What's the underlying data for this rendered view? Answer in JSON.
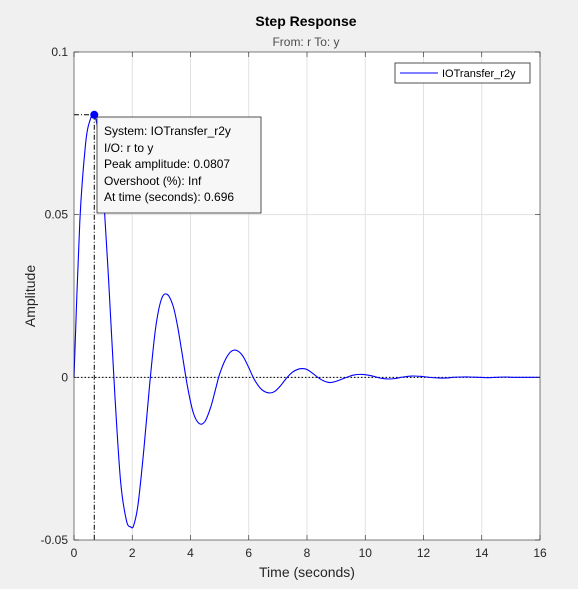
{
  "chart_data": {
    "type": "line",
    "title": "Step Response",
    "subtitle": "From: r  To: y",
    "xlabel": "Time (seconds)",
    "ylabel": "Amplitude",
    "xlim": [
      0,
      16
    ],
    "ylim": [
      -0.05,
      0.1
    ],
    "grid": true,
    "x_ticks": [
      0,
      2,
      4,
      6,
      8,
      10,
      12,
      14,
      16
    ],
    "y_ticks": [
      -0.05,
      0,
      0.05,
      0.1
    ],
    "x_tick_labels": [
      "0",
      "2",
      "4",
      "6",
      "8",
      "10",
      "12",
      "14",
      "16"
    ],
    "y_tick_labels": [
      "-0.05",
      "0",
      "0.05",
      "0.1"
    ],
    "legend": {
      "position": "top-right",
      "entries": [
        "IOTransfer_r2y"
      ]
    },
    "series": [
      {
        "name": "IOTransfer_r2y",
        "color": "#0000ff",
        "x": [
          0,
          0.2,
          0.4,
          0.55,
          0.696,
          0.85,
          1.0,
          1.2,
          1.4,
          1.6,
          1.8,
          1.95,
          2.05,
          2.2,
          2.4,
          2.6,
          2.8,
          3.0,
          3.2,
          3.4,
          3.55,
          3.7,
          3.9,
          4.1,
          4.3,
          4.5,
          4.7,
          4.85,
          5.0,
          5.2,
          5.4,
          5.6,
          5.8,
          6.0,
          6.2,
          6.45,
          6.7,
          6.9,
          7.1,
          7.3,
          7.5,
          7.7,
          7.85,
          8.0,
          8.2,
          8.4,
          8.6,
          8.8,
          9.0,
          9.3,
          9.6,
          9.9,
          10.2,
          10.5,
          10.75,
          11.0,
          11.3,
          11.6,
          11.9,
          12.2,
          12.5,
          12.8,
          13.0,
          13.3,
          13.6,
          13.9,
          14.2,
          14.5,
          14.8,
          15.1,
          15.4,
          15.7,
          16.0
        ],
        "y": [
          0,
          0.048,
          0.072,
          0.079,
          0.0807,
          0.074,
          0.058,
          0.028,
          -0.005,
          -0.032,
          -0.044,
          -0.046,
          -0.0455,
          -0.039,
          -0.022,
          -0.002,
          0.015,
          0.024,
          0.0255,
          0.022,
          0.016,
          0.008,
          -0.003,
          -0.011,
          -0.0142,
          -0.0135,
          -0.009,
          -0.004,
          0.001,
          0.0055,
          0.008,
          0.0082,
          0.0065,
          0.003,
          -0.0008,
          -0.0038,
          -0.0048,
          -0.0043,
          -0.0025,
          -0.0002,
          0.0016,
          0.0025,
          0.0027,
          0.0024,
          0.0012,
          -0.0002,
          -0.0012,
          -0.0016,
          -0.0012,
          -0.0002,
          0.0007,
          0.0009,
          0.0005,
          -0.0002,
          -0.0005,
          -0.0004,
          0.0001,
          0.0004,
          0.0003,
          0.0,
          -0.0002,
          -0.0002,
          0.0,
          0.0001,
          0.0001,
          0.0,
          -0.0001,
          0.0,
          0.0001,
          0.0,
          0.0,
          0.0,
          0.0
        ]
      }
    ],
    "peak_marker": {
      "x": 0.696,
      "y": 0.0807,
      "color": "#0000ff"
    },
    "datatip": {
      "lines": [
        "System:  IOTransfer_r2y",
        "I/O:  r  to  y",
        "Peak  amplitude:  0.0807",
        "Overshoot  (%):  Inf",
        "At time  (seconds):  0.696"
      ]
    },
    "zero_line": {
      "y": 0,
      "style": "dotted"
    }
  }
}
